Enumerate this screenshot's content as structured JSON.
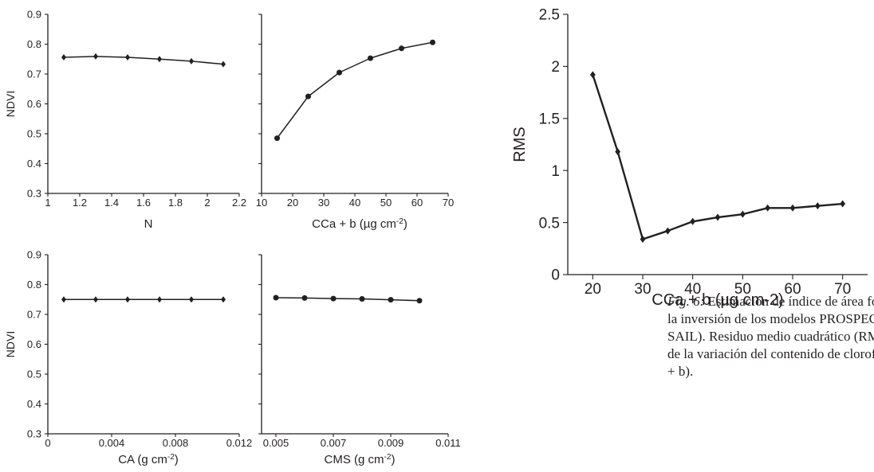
{
  "chart_data": [
    {
      "type": "line",
      "panel": "top-left",
      "x": [
        1.1,
        1.3,
        1.5,
        1.7,
        1.9,
        2.1
      ],
      "values": [
        0.756,
        0.759,
        0.756,
        0.75,
        0.743,
        0.733
      ],
      "marker": "diamond",
      "xlabel": "N",
      "ylabel": "NDVI",
      "xlim": [
        1,
        2.2
      ],
      "ylim": [
        0.3,
        0.9
      ],
      "xticks": [
        "1",
        "1.2",
        "1.4",
        "1.6",
        "1.8",
        "2",
        "2.2"
      ],
      "yticks": [
        "0.3",
        "0.4",
        "0.5",
        "0.6",
        "0.7",
        "0.8",
        "0.9"
      ]
    },
    {
      "type": "line",
      "panel": "top-right",
      "x": [
        15,
        25,
        35,
        45,
        55,
        65
      ],
      "values": [
        0.485,
        0.625,
        0.705,
        0.753,
        0.786,
        0.806
      ],
      "marker": "circle",
      "xlabel": "CCa + b (µg cm",
      "xlabel_sup": "-2",
      "xlabel_end": ")",
      "xlim": [
        10,
        70
      ],
      "ylim": [
        0.3,
        0.9
      ],
      "xticks": [
        "10",
        "20",
        "30",
        "40",
        "50",
        "60",
        "70"
      ]
    },
    {
      "type": "line",
      "panel": "bottom-left",
      "x": [
        0.001,
        0.003,
        0.005,
        0.007,
        0.009,
        0.011
      ],
      "values": [
        0.75,
        0.75,
        0.75,
        0.75,
        0.75,
        0.75
      ],
      "marker": "diamond",
      "xlabel": "CA (g cm",
      "xlabel_sup": "-2",
      "xlabel_end": ")",
      "ylabel": "NDVI",
      "xlim": [
        0,
        0.012
      ],
      "ylim": [
        0.3,
        0.9
      ],
      "xticks": [
        "0",
        "0.004",
        "0.008",
        "0.012"
      ],
      "yticks": [
        "0.3",
        "0.4",
        "0.5",
        "0.6",
        "0.7",
        "0.8",
        "0.9"
      ]
    },
    {
      "type": "line",
      "panel": "bottom-right",
      "x": [
        0.005,
        0.006,
        0.007,
        0.008,
        0.009,
        0.01
      ],
      "values": [
        0.756,
        0.755,
        0.753,
        0.752,
        0.749,
        0.746
      ],
      "marker": "circle",
      "xlabel": "CMS (g cm",
      "xlabel_sup": "-2",
      "xlabel_end": ")",
      "xlim": [
        0.0045,
        0.011
      ],
      "ylim": [
        0.3,
        0.9
      ],
      "xticks": [
        "0.005",
        "0.007",
        "0.009",
        "0.011"
      ]
    },
    {
      "type": "line",
      "panel": "right",
      "x": [
        20,
        25,
        30,
        35,
        40,
        45,
        50,
        55,
        60,
        65,
        70
      ],
      "values": [
        1.92,
        1.18,
        0.34,
        0.42,
        0.51,
        0.55,
        0.58,
        0.64,
        0.64,
        0.66,
        0.68
      ],
      "marker": "diamond",
      "xlabel": "CCa + b (µg cm-2)",
      "ylabel": "RMS",
      "xlim": [
        15,
        75
      ],
      "ylim": [
        0,
        2.5
      ],
      "xticks": [
        "20",
        "30",
        "40",
        "50",
        "60",
        "70"
      ],
      "yticks": [
        "0",
        "0.5",
        "1",
        "1.5",
        "2",
        "2.5"
      ]
    }
  ],
  "caption": {
    "fig_label": "Fig. 6:",
    "lines": [
      " Estimación de índice de área foliar med",
      "la inversión de los modelos PROSPECT y SAIL (I",
      "SAIL). Residuo medio cuadrático (RMS) en fun",
      "de la variación del contenido de clorofila a + b (",
      "+ b)."
    ]
  },
  "colors": {
    "line": "#231f20",
    "text": "#231f20",
    "background": "#ffffff"
  }
}
